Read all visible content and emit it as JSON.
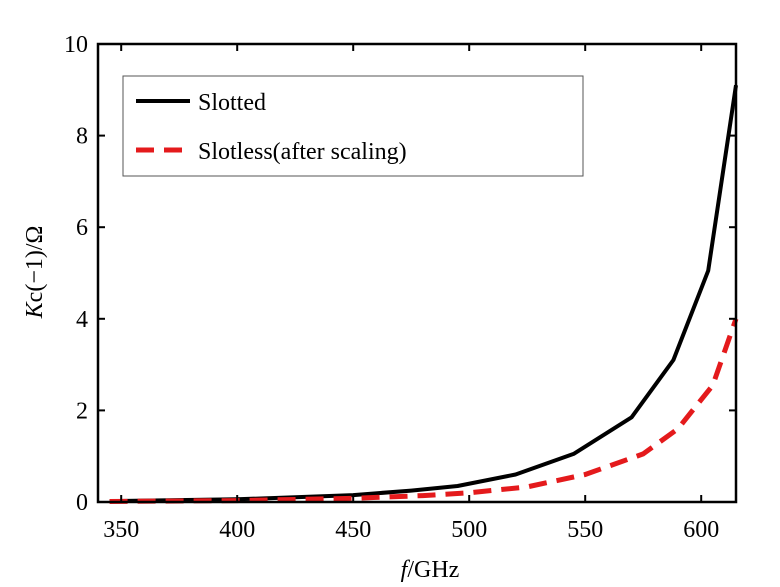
{
  "chart_data": {
    "type": "line",
    "title": "",
    "xlabel_italic": "f",
    "xlabel_rest": "/GHz",
    "ylabel_italic": "K",
    "ylabel_rest": "c(−1)/Ω",
    "xlim": [
      340,
      615
    ],
    "ylim": [
      0,
      10
    ],
    "xticks": [
      350,
      400,
      450,
      500,
      550,
      600
    ],
    "yticks": [
      0,
      2,
      4,
      6,
      8,
      10
    ],
    "grid": false,
    "legend_position": "top-left",
    "series": [
      {
        "name": "Slotted",
        "color": "#000000",
        "style": "solid",
        "x": [
          345,
          400,
          450,
          475,
          495,
          520,
          545,
          570,
          588,
          603,
          615
        ],
        "y": [
          0.02,
          0.06,
          0.15,
          0.25,
          0.35,
          0.6,
          1.05,
          1.85,
          3.1,
          5.05,
          9.1
        ]
      },
      {
        "name": "Slotless(after scaling)",
        "color": "#e41a1c",
        "style": "dashed",
        "x": [
          345,
          400,
          450,
          480,
          500,
          525,
          550,
          575,
          590,
          605,
          615
        ],
        "y": [
          0.01,
          0.03,
          0.08,
          0.14,
          0.2,
          0.33,
          0.6,
          1.05,
          1.6,
          2.55,
          4.0
        ]
      }
    ]
  }
}
